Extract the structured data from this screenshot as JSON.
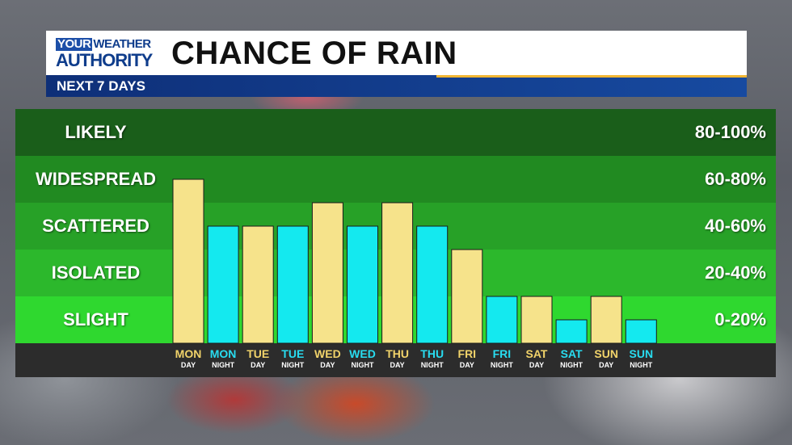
{
  "header": {
    "logo_line1_boxed": "YOUR",
    "logo_line1_rest": "WEATHER",
    "logo_line2": "AUTHORITY",
    "title": "CHANCE OF RAIN",
    "subtitle": "NEXT 7 DAYS"
  },
  "colors": {
    "day_bar": "#f6e38b",
    "night_bar": "#14e9ef",
    "band_likely": "#1a5e1a",
    "band_widespread": "#218a21",
    "band_scattered": "#27a127",
    "band_isolated": "#2cb82c",
    "band_slight": "#2fd82f",
    "day_text": "#f1d36a",
    "night_text": "#28dcf0"
  },
  "bands": [
    {
      "label": "LIKELY",
      "range": "80-100%"
    },
    {
      "label": "WIDESPREAD",
      "range": "60-80%"
    },
    {
      "label": "SCATTERED",
      "range": "40-60%"
    },
    {
      "label": "ISOLATED",
      "range": "20-40%"
    },
    {
      "label": "SLIGHT",
      "range": "0-20%"
    }
  ],
  "chart_data": {
    "type": "bar",
    "title": "CHANCE OF RAIN",
    "ylim": [
      0,
      100
    ],
    "categories": [
      {
        "day": "MON",
        "period": "DAY"
      },
      {
        "day": "MON",
        "period": "NIGHT"
      },
      {
        "day": "TUE",
        "period": "DAY"
      },
      {
        "day": "TUE",
        "period": "NIGHT"
      },
      {
        "day": "WED",
        "period": "DAY"
      },
      {
        "day": "WED",
        "period": "NIGHT"
      },
      {
        "day": "THU",
        "period": "DAY"
      },
      {
        "day": "THU",
        "period": "NIGHT"
      },
      {
        "day": "FRI",
        "period": "DAY"
      },
      {
        "day": "FRI",
        "period": "NIGHT"
      },
      {
        "day": "SAT",
        "period": "DAY"
      },
      {
        "day": "SAT",
        "period": "NIGHT"
      },
      {
        "day": "SUN",
        "period": "DAY"
      },
      {
        "day": "SUN",
        "period": "NIGHT"
      }
    ],
    "values": [
      70,
      50,
      50,
      50,
      60,
      50,
      60,
      50,
      40,
      20,
      20,
      10,
      20,
      10
    ]
  }
}
